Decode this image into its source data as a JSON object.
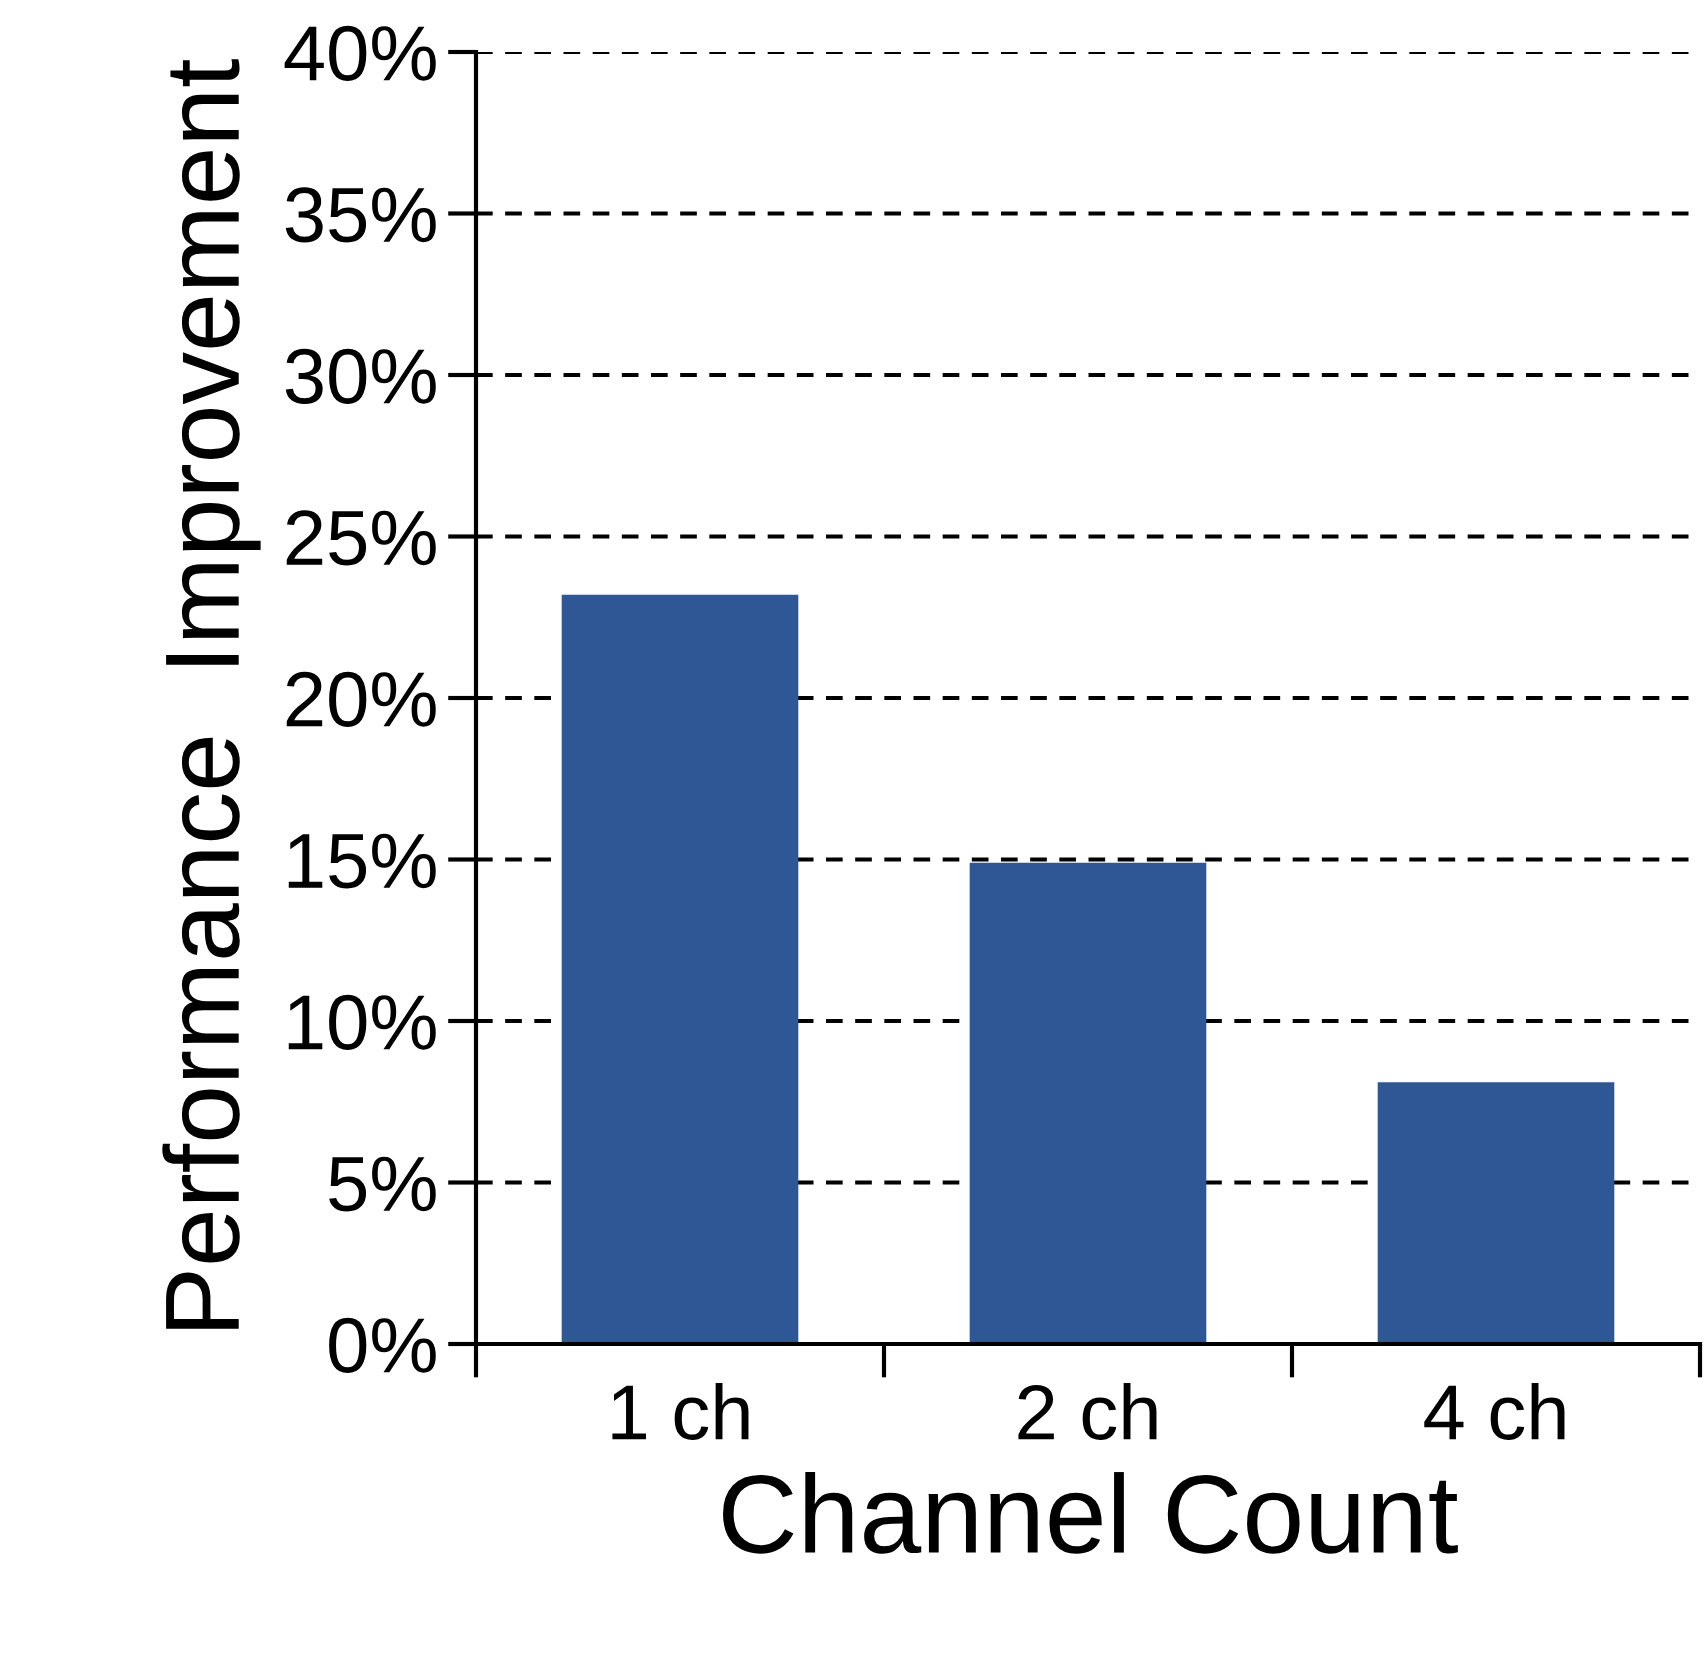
{
  "chart_data": {
    "type": "bar",
    "xlabel": "Channel Count",
    "ylabel": "Performance  Improvement",
    "categories": [
      "1 ch",
      "2 ch",
      "4 ch"
    ],
    "values": [
      23.2,
      14.9,
      8.1
    ],
    "color": "#2f5796",
    "ylim": [
      0,
      40
    ],
    "yticks": [
      {
        "value": 0,
        "label": "0%"
      },
      {
        "value": 5,
        "label": "5%"
      },
      {
        "value": 10,
        "label": "10%"
      },
      {
        "value": 15,
        "label": "15%"
      },
      {
        "value": 20,
        "label": "20%"
      },
      {
        "value": 25,
        "label": "25%"
      },
      {
        "value": 30,
        "label": "30%"
      },
      {
        "value": 35,
        "label": "35%"
      },
      {
        "value": 40,
        "label": "40%"
      }
    ],
    "grid": "y",
    "legend": false
  }
}
